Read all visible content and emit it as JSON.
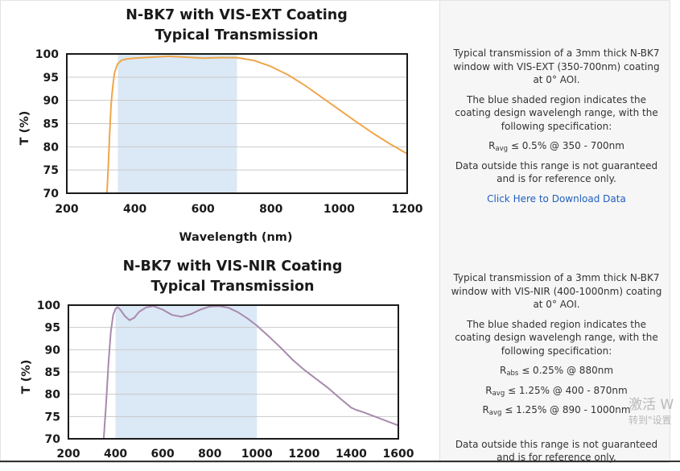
{
  "chart_data": [
    {
      "type": "line",
      "title": "N-BK7 with VIS-EXT Coating",
      "subtitle": "Typical Transmission",
      "xlabel": "Wavelength (nm)",
      "ylabel": "T (%)",
      "xlim": [
        200,
        1200
      ],
      "ylim": [
        70,
        100
      ],
      "xticks": [
        "200",
        "400",
        "600",
        "800",
        "1000",
        "1200"
      ],
      "yticks": [
        "100",
        "95",
        "90",
        "85",
        "80",
        "75",
        "70"
      ],
      "grid": true,
      "shaded_region": [
        350,
        700
      ],
      "line_color": "#f0a64a",
      "shade_color": "#dbe8f5",
      "series": [
        {
          "x": [
            318,
            322,
            326,
            330,
            335,
            340,
            345,
            350,
            360,
            375,
            400,
            450,
            500,
            550,
            600,
            650,
            700,
            750,
            800,
            850,
            900,
            950,
            1000,
            1050,
            1100,
            1150,
            1200
          ],
          "y": [
            70,
            76,
            83,
            89,
            93,
            95.8,
            97,
            97.9,
            98.6,
            98.9,
            99.1,
            99.3,
            99.5,
            99.3,
            99.1,
            99.2,
            99.2,
            98.6,
            97.3,
            95.5,
            93.2,
            90.6,
            88,
            85.4,
            82.9,
            80.6,
            78.5
          ]
        }
      ]
    },
    {
      "type": "line",
      "title": "N-BK7 with VIS-NIR Coating",
      "subtitle": "Typical Transmission",
      "xlabel": "",
      "ylabel": "T (%)",
      "xlim": [
        200,
        1600
      ],
      "ylim": [
        70,
        100
      ],
      "xticks": [
        "200",
        "400",
        "600",
        "800",
        "1000",
        "1200",
        "1400",
        "1600"
      ],
      "yticks": [
        "100",
        "95",
        "90",
        "85",
        "80",
        "75",
        "70"
      ],
      "grid": true,
      "shaded_region": [
        400,
        1000
      ],
      "line_color": "#a88aae",
      "shade_color": "#dbe8f5",
      "series": [
        {
          "x": [
            350,
            360,
            370,
            380,
            390,
            400,
            410,
            420,
            440,
            460,
            480,
            500,
            530,
            560,
            600,
            640,
            680,
            720,
            760,
            800,
            840,
            880,
            920,
            960,
            1000,
            1050,
            1100,
            1150,
            1200,
            1250,
            1300,
            1350,
            1400,
            1420,
            1450,
            1500,
            1550,
            1600
          ],
          "y": [
            70,
            78,
            87,
            94,
            97.8,
            99.2,
            99.5,
            99,
            97.5,
            96.6,
            97.2,
            98.5,
            99.5,
            99.8,
            99,
            97.8,
            97.4,
            98,
            99,
            99.7,
            99.8,
            99.4,
            98.4,
            97,
            95.4,
            93,
            90.5,
            87.8,
            85.5,
            83.5,
            81.5,
            79.2,
            77,
            76.5,
            76,
            75,
            74,
            73
          ]
        }
      ]
    }
  ],
  "panel1": {
    "desc_line1": "Typical transmission of a 3mm thick N-BK7 window with VIS-EXT (350-700nm) coating at 0° AOI.",
    "desc_line2": "The blue shaded region indicates the coating design wavelengh range, with the following specification:",
    "spec1_sym": "R",
    "spec1_sub": "avg",
    "spec1_val": " ≤ 0.5% @ 350 - 700nm",
    "note": "Data outside this range is not guaranteed and is for reference only.",
    "download_link": "Click Here to Download Data"
  },
  "panel2": {
    "desc_line1": "Typical transmission of a 3mm thick N-BK7 window with VIS-NIR (400-1000nm) coating at 0° AOI.",
    "desc_line2": "The blue shaded region indicates the coating design wavelengh range, with the following specification:",
    "spec1_sym": "R",
    "spec1_sub": "abs",
    "spec1_val": " ≤ 0.25% @ 880nm",
    "spec2_sym": "R",
    "spec2_sub": "avg",
    "spec2_val": " ≤ 1.25% @ 400 - 870nm",
    "spec3_sym": "R",
    "spec3_sub": "avg",
    "spec3_val": " ≤ 1.25% @ 890 - 1000nm",
    "note": "Data outside this range is not guaranteed and is for reference only."
  },
  "watermark": {
    "line1": "激活 W",
    "line2": "转到\"设置"
  }
}
